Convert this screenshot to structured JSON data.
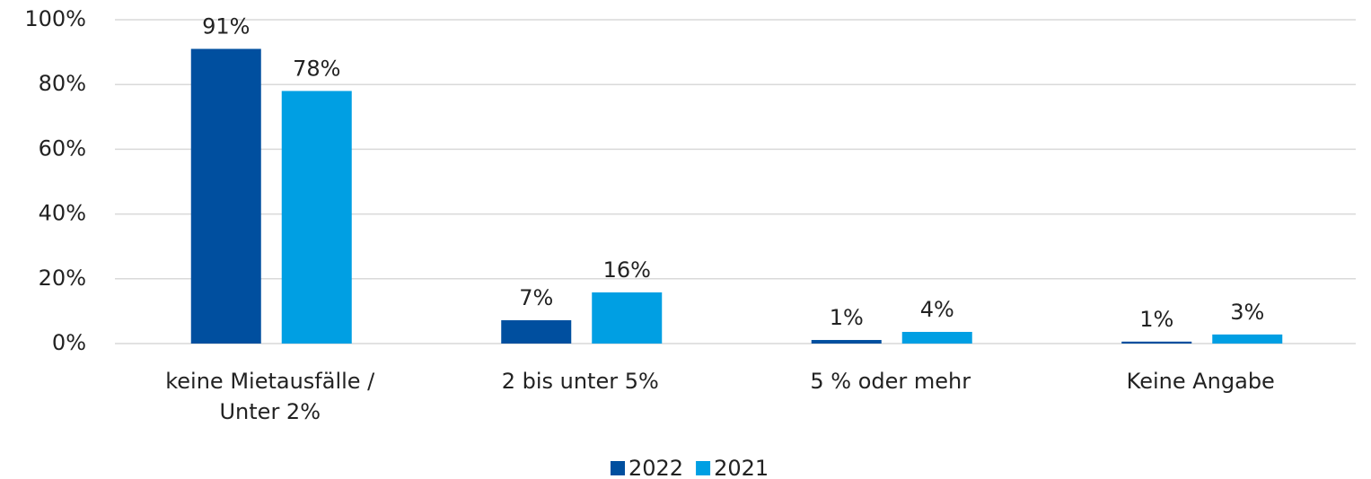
{
  "chart_data": {
    "type": "bar",
    "categories": [
      "keine Mietausfälle / Unter 2%",
      "2 bis unter 5%",
      "5 % oder mehr",
      "Keine Angabe"
    ],
    "series": [
      {
        "name": "2022",
        "color": "#004f9f",
        "values": [
          91,
          7.2,
          1.1,
          0.6
        ],
        "value_labels": [
          "91%",
          "7%",
          "1%",
          "1%"
        ]
      },
      {
        "name": "2021",
        "color": "#009fe3",
        "values": [
          78,
          15.8,
          3.6,
          2.8
        ],
        "value_labels": [
          "78%",
          "16%",
          "4%",
          "3%"
        ]
      }
    ],
    "ylim": [
      0,
      100
    ],
    "yticks": [
      {
        "value": 0,
        "label": "0%"
      },
      {
        "value": 20,
        "label": "20%"
      },
      {
        "value": 40,
        "label": "40%"
      },
      {
        "value": 60,
        "label": "60%"
      },
      {
        "value": 80,
        "label": "80%"
      },
      {
        "value": 100,
        "label": "100%"
      }
    ],
    "grid": true,
    "legend": "bottom"
  }
}
